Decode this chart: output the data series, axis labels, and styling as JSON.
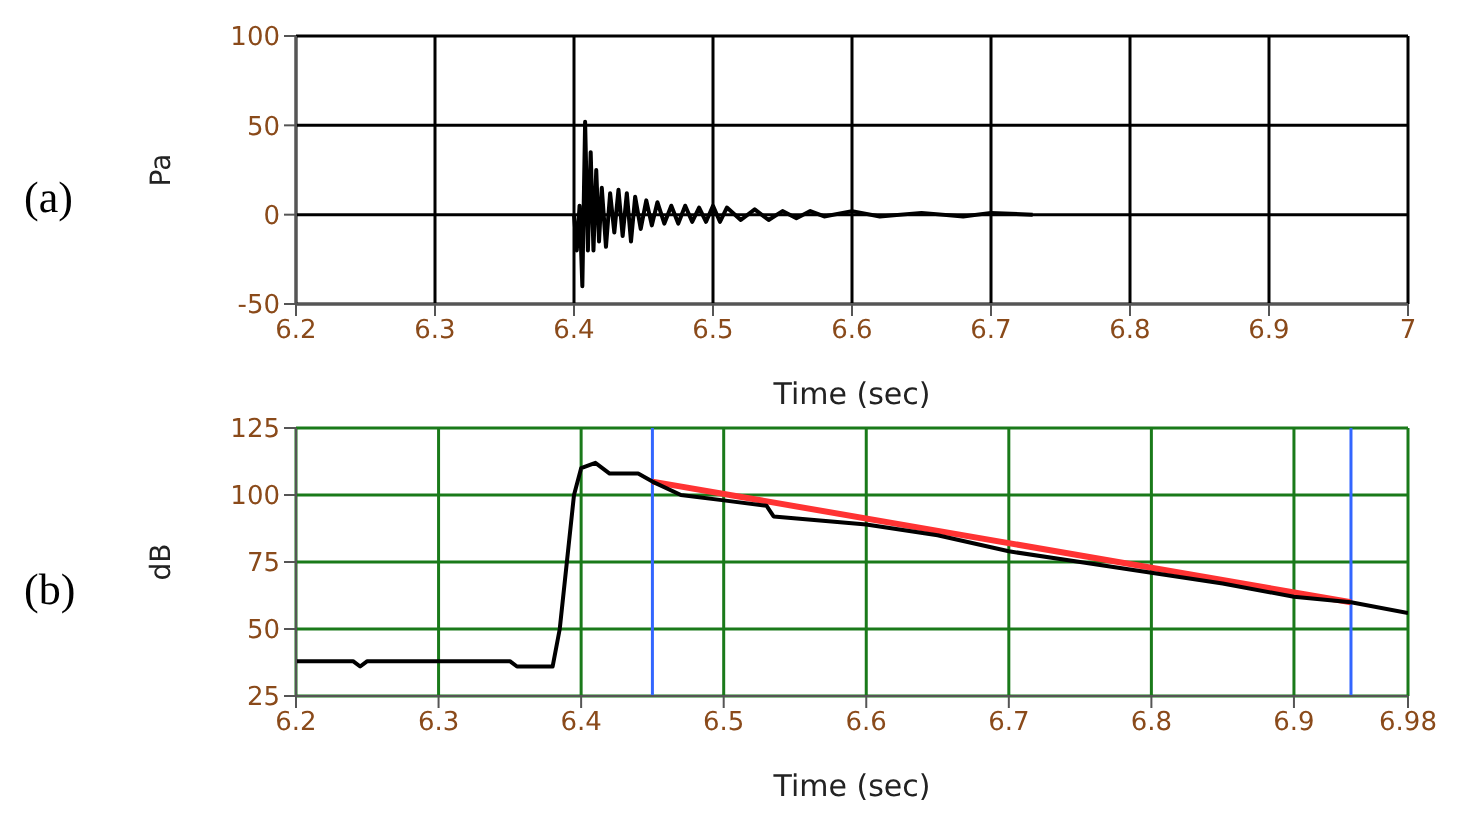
{
  "chart_data": [
    {
      "type": "line",
      "xlabel": "Time (sec)",
      "ylabel": "Pa",
      "annotations": [
        "(a)"
      ],
      "xlim": [
        6.2,
        7
      ],
      "xticks": [
        6.2,
        6.3,
        6.4,
        6.5,
        6.6,
        6.7,
        6.8,
        6.9,
        7
      ],
      "ylim": [
        -50,
        100
      ],
      "yticks": [
        -50,
        0,
        50,
        100
      ],
      "grid": true,
      "marker": "none",
      "series": [
        {
          "color": "#000000",
          "x": [
            6.4,
            6.402,
            6.404,
            6.406,
            6.408,
            6.41,
            6.412,
            6.414,
            6.416,
            6.418,
            6.42,
            6.423,
            6.426,
            6.429,
            6.432,
            6.435,
            6.438,
            6.441,
            6.444,
            6.448,
            6.452,
            6.456,
            6.46,
            6.465,
            6.47,
            6.475,
            6.48,
            6.485,
            6.49,
            6.495,
            6.5,
            6.505,
            6.51,
            6.52,
            6.53,
            6.54,
            6.55,
            6.56,
            6.57,
            6.58,
            6.6,
            6.62,
            6.65,
            6.68,
            6.7,
            6.73
          ],
          "values": [
            0,
            -20,
            5,
            -40,
            52,
            -20,
            35,
            -20,
            25,
            -15,
            15,
            -18,
            12,
            -10,
            14,
            -12,
            12,
            -15,
            10,
            -8,
            8,
            -6,
            7,
            -5,
            5,
            -5,
            5,
            -4,
            4,
            -4,
            5,
            -4,
            4,
            -3,
            3,
            -3,
            2,
            -2,
            2,
            -1,
            2,
            -1,
            1,
            -1,
            1,
            0
          ]
        }
      ]
    },
    {
      "type": "line",
      "xlabel": "Time (sec)",
      "ylabel": "dB",
      "annotations": [
        "(b)"
      ],
      "xlim": [
        6.2,
        6.98
      ],
      "xticks": [
        6.2,
        6.3,
        6.4,
        6.5,
        6.6,
        6.7,
        6.8,
        6.9,
        6.98
      ],
      "ylim": [
        25,
        125
      ],
      "yticks": [
        25,
        50,
        75,
        100,
        125
      ],
      "grid": true,
      "marker": "none",
      "ref_lines": [
        {
          "axis": "x",
          "value": 6.45,
          "color": "#3366ff"
        },
        {
          "axis": "x",
          "value": 6.94,
          "color": "#3366ff"
        }
      ],
      "series": [
        {
          "color": "#ff3333",
          "x": [
            6.45,
            6.94
          ],
          "values": [
            105,
            60
          ]
        },
        {
          "color": "#000000",
          "x": [
            6.2,
            6.24,
            6.245,
            6.25,
            6.35,
            6.355,
            6.38,
            6.385,
            6.39,
            6.395,
            6.4,
            6.41,
            6.42,
            6.44,
            6.45,
            6.47,
            6.5,
            6.53,
            6.535,
            6.6,
            6.65,
            6.7,
            6.75,
            6.8,
            6.85,
            6.9,
            6.94,
            6.98
          ],
          "values": [
            38,
            38,
            36,
            38,
            38,
            36,
            36,
            50,
            75,
            100,
            110,
            112,
            108,
            108,
            105,
            100,
            98,
            96,
            92,
            89,
            85,
            79,
            75,
            71,
            67,
            62,
            60,
            56
          ]
        }
      ]
    }
  ]
}
